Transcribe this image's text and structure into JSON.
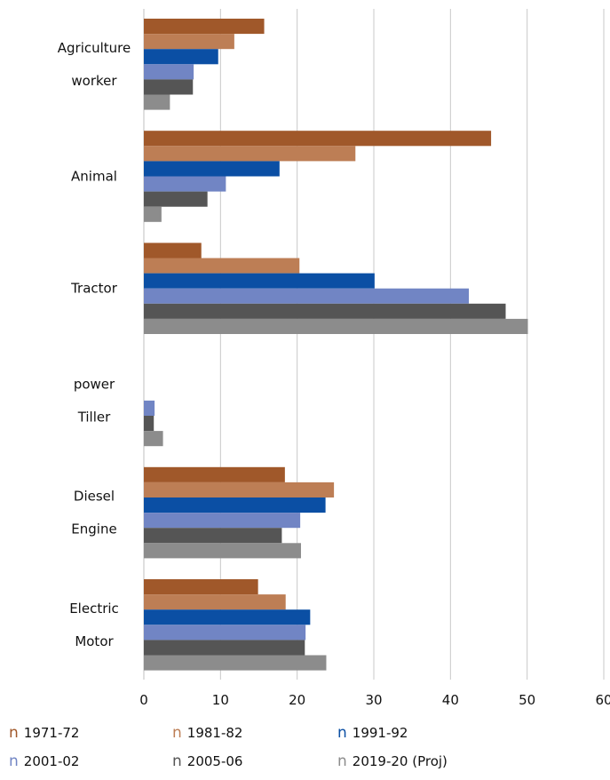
{
  "chart_data": {
    "type": "bar",
    "orientation": "horizontal",
    "categories": [
      [
        "Agriculture",
        "worker"
      ],
      [
        "Animal"
      ],
      [
        "Tractor"
      ],
      [
        "power",
        "Tiller"
      ],
      [
        "Diesel",
        "Engine"
      ],
      [
        "Electric",
        "Motor"
      ]
    ],
    "series": [
      {
        "name": "1971-72",
        "color": "#a0582a",
        "values": [
          15.7,
          45.3,
          7.5,
          0,
          18.4,
          14.9
        ]
      },
      {
        "name": "1981-82",
        "color": "#bd7e55",
        "values": [
          11.8,
          27.6,
          20.3,
          0,
          24.8,
          18.5
        ]
      },
      {
        "name": "1991-92",
        "color": "#0b4fa4",
        "values": [
          9.7,
          17.7,
          30.1,
          0,
          23.7,
          21.7
        ]
      },
      {
        "name": "2001-02",
        "color": "#7185c4",
        "values": [
          6.5,
          10.7,
          42.4,
          1.4,
          20.4,
          21.1
        ]
      },
      {
        "name": "2005-06",
        "color": "#555555",
        "values": [
          6.4,
          8.3,
          47.2,
          1.3,
          18.0,
          21.0
        ]
      },
      {
        "name": "2019-20 (Proj)",
        "color": "#8c8c8c",
        "values": [
          3.4,
          2.3,
          50.1,
          2.5,
          20.5,
          23.8
        ]
      }
    ],
    "xlim": [
      0,
      60
    ],
    "xticks": [
      0,
      10,
      20,
      30,
      40,
      50,
      60
    ],
    "grid": "vertical",
    "legend_position": "bottom",
    "legend_marker": "n"
  }
}
